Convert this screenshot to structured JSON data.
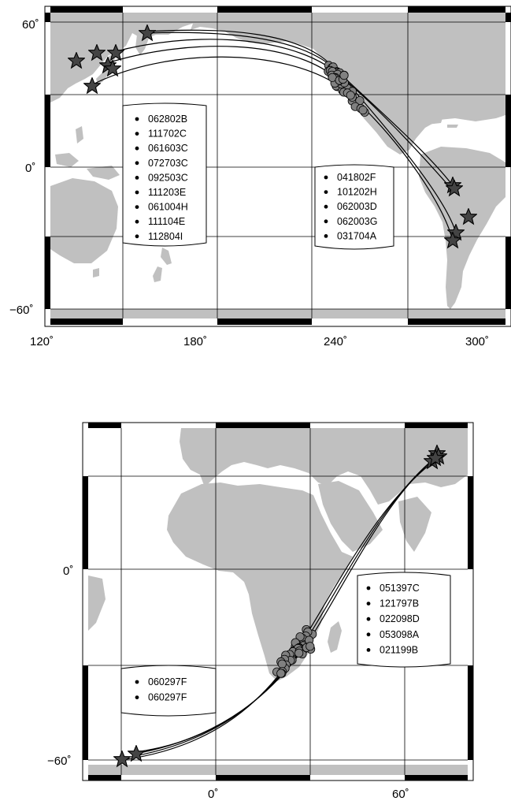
{
  "maps": [
    {
      "id": "pacific",
      "lat_ticks": [
        "60˚",
        "0˚",
        "−60˚"
      ],
      "lon_ticks": [
        "120˚",
        "180˚",
        "240˚",
        "300˚"
      ],
      "legends": [
        {
          "entries": [
            "062802B",
            "111702C",
            "061603C",
            "072703C",
            "092503C",
            "111203E",
            "061004H",
            "111104E",
            "112804I"
          ]
        },
        {
          "entries": [
            "041802F",
            "101202H",
            "062003D",
            "062003G",
            "031704A"
          ]
        }
      ],
      "land_color": "#c0c0c0",
      "station_color": "#808080",
      "event_marker": "star"
    },
    {
      "id": "africa",
      "lat_ticks": [
        "0˚",
        "−60˚"
      ],
      "lon_ticks": [
        "0˚",
        "60˚"
      ],
      "legends": [
        {
          "entries": [
            "051397C",
            "121797B",
            "022098D",
            "053098A",
            "021199B"
          ]
        },
        {
          "entries": [
            "060297F",
            "060297F"
          ]
        }
      ],
      "land_color": "#c0c0c0",
      "station_color": "#808080",
      "event_marker": "star"
    }
  ]
}
